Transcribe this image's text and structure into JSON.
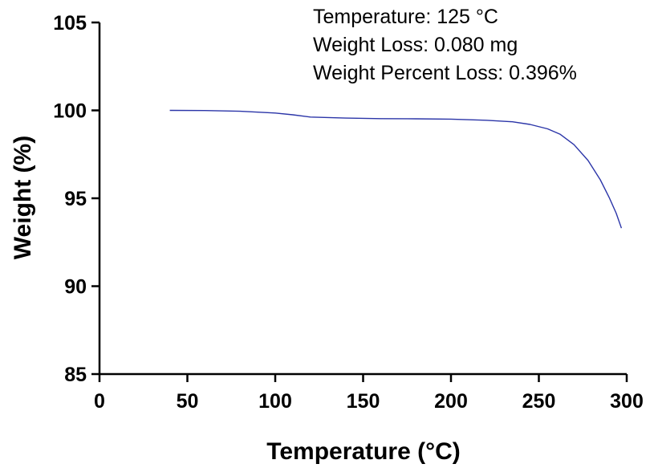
{
  "chart_data": {
    "type": "line",
    "xlabel": "Temperature (°C)",
    "ylabel": "Weight (%)",
    "xlim": [
      0,
      300
    ],
    "ylim": [
      85,
      105
    ],
    "xticks": [
      0,
      50,
      100,
      150,
      200,
      250,
      300
    ],
    "yticks": [
      85,
      90,
      95,
      100,
      105
    ],
    "grid": false,
    "line_color": "#2b35a8",
    "annotations": [
      "Temperature: 125 °C",
      "Weight Loss: 0.080 mg",
      "Weight Percent Loss: 0.396%"
    ],
    "series": [
      {
        "x": [
          40,
          60,
          80,
          100,
          110,
          120,
          140,
          160,
          180,
          200,
          220,
          235,
          245,
          255,
          262,
          270,
          278,
          285,
          290,
          294,
          297
        ],
        "y": [
          100.0,
          99.99,
          99.95,
          99.85,
          99.75,
          99.62,
          99.56,
          99.53,
          99.52,
          99.5,
          99.44,
          99.35,
          99.2,
          98.95,
          98.65,
          98.05,
          97.15,
          96.05,
          95.05,
          94.15,
          93.3
        ]
      }
    ]
  }
}
